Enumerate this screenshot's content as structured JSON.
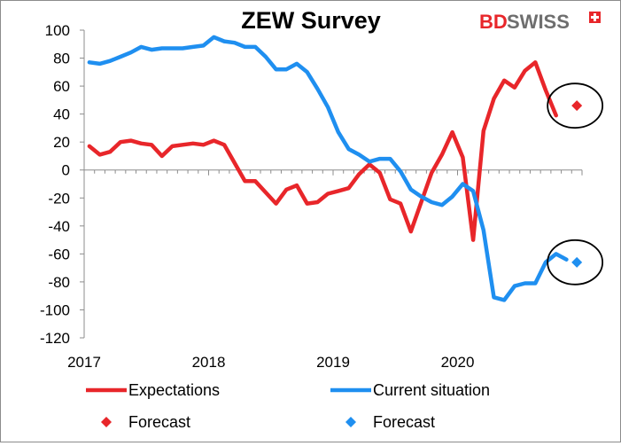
{
  "chart_data": {
    "type": "line",
    "title": "ZEW Survey",
    "xlabel": "",
    "ylabel": "",
    "ylim": [
      -120,
      100
    ],
    "yticks": [
      100,
      80,
      60,
      40,
      20,
      0,
      -20,
      -40,
      -60,
      -80,
      -100,
      -120
    ],
    "xticks": [
      "2017",
      "2018",
      "2019",
      "2020"
    ],
    "x_start": "2017-01",
    "x_end": "2020-12",
    "series": [
      {
        "name": "Expectations",
        "color": "#e8262a",
        "x": [
          "2017-01",
          "2017-02",
          "2017-03",
          "2017-04",
          "2017-05",
          "2017-06",
          "2017-07",
          "2017-08",
          "2017-09",
          "2017-10",
          "2017-11",
          "2017-12",
          "2018-01",
          "2018-02",
          "2018-03",
          "2018-04",
          "2018-05",
          "2018-06",
          "2018-07",
          "2018-08",
          "2018-09",
          "2018-10",
          "2018-11",
          "2018-12",
          "2019-01",
          "2019-02",
          "2019-03",
          "2019-04",
          "2019-05",
          "2019-06",
          "2019-07",
          "2019-08",
          "2019-09",
          "2019-10",
          "2019-11",
          "2019-12",
          "2020-01",
          "2020-02",
          "2020-03",
          "2020-04",
          "2020-05",
          "2020-06",
          "2020-07",
          "2020-08",
          "2020-09",
          "2020-10",
          "2020-11"
        ],
        "values": [
          17,
          11,
          13,
          20,
          21,
          19,
          18,
          10,
          17,
          18,
          19,
          18,
          21,
          18,
          5,
          -8,
          -8,
          -16,
          -24,
          -14,
          -11,
          -24,
          -23,
          -17,
          -15,
          -13,
          -3,
          4,
          -2,
          -21,
          -24,
          -44,
          -23,
          -2,
          11,
          27,
          9,
          -50,
          28,
          51,
          64,
          59,
          71,
          77,
          57,
          39,
          null
        ],
        "forecast": {
          "x": "2020-12",
          "value": 46
        }
      },
      {
        "name": "Current situation",
        "color": "#1f8ff0",
        "x": [
          "2017-01",
          "2017-02",
          "2017-03",
          "2017-04",
          "2017-05",
          "2017-06",
          "2017-07",
          "2017-08",
          "2017-09",
          "2017-10",
          "2017-11",
          "2017-12",
          "2018-01",
          "2018-02",
          "2018-03",
          "2018-04",
          "2018-05",
          "2018-06",
          "2018-07",
          "2018-08",
          "2018-09",
          "2018-10",
          "2018-11",
          "2018-12",
          "2019-01",
          "2019-02",
          "2019-03",
          "2019-04",
          "2019-05",
          "2019-06",
          "2019-07",
          "2019-08",
          "2019-09",
          "2019-10",
          "2019-11",
          "2019-12",
          "2020-01",
          "2020-02",
          "2020-03",
          "2020-04",
          "2020-05",
          "2020-06",
          "2020-07",
          "2020-08",
          "2020-09",
          "2020-10",
          "2020-11"
        ],
        "values": [
          77,
          76,
          78,
          81,
          84,
          88,
          86,
          87,
          87,
          87,
          88,
          89,
          95,
          92,
          91,
          88,
          88,
          81,
          72,
          72,
          76,
          70,
          58,
          45,
          27,
          15,
          11,
          6,
          8,
          8,
          -1,
          -14,
          -19,
          -23,
          -25,
          -19,
          -10,
          -15,
          -43,
          -91,
          -93,
          -83,
          -81,
          -81,
          -66,
          -60,
          -64
        ],
        "forecast": {
          "x": "2020-12",
          "value": -66
        }
      }
    ],
    "legend": {
      "placement": "bottom",
      "items": [
        {
          "label": "Expectations",
          "color": "#e8262a",
          "marker": "line"
        },
        {
          "label": "Current situation",
          "color": "#1f8ff0",
          "marker": "line"
        },
        {
          "label": "Forecast",
          "color": "#e8262a",
          "marker": "diamond"
        },
        {
          "label": "Forecast",
          "color": "#1f8ff0",
          "marker": "diamond"
        }
      ]
    },
    "annotations": [
      "circle around expectations forecast",
      "circle around current situation forecast"
    ],
    "grid": false
  },
  "logo": {
    "text_bd": "BD",
    "text_swiss": "SWISS",
    "color_red": "#e8262a",
    "color_grey": "#6e6e6e"
  }
}
